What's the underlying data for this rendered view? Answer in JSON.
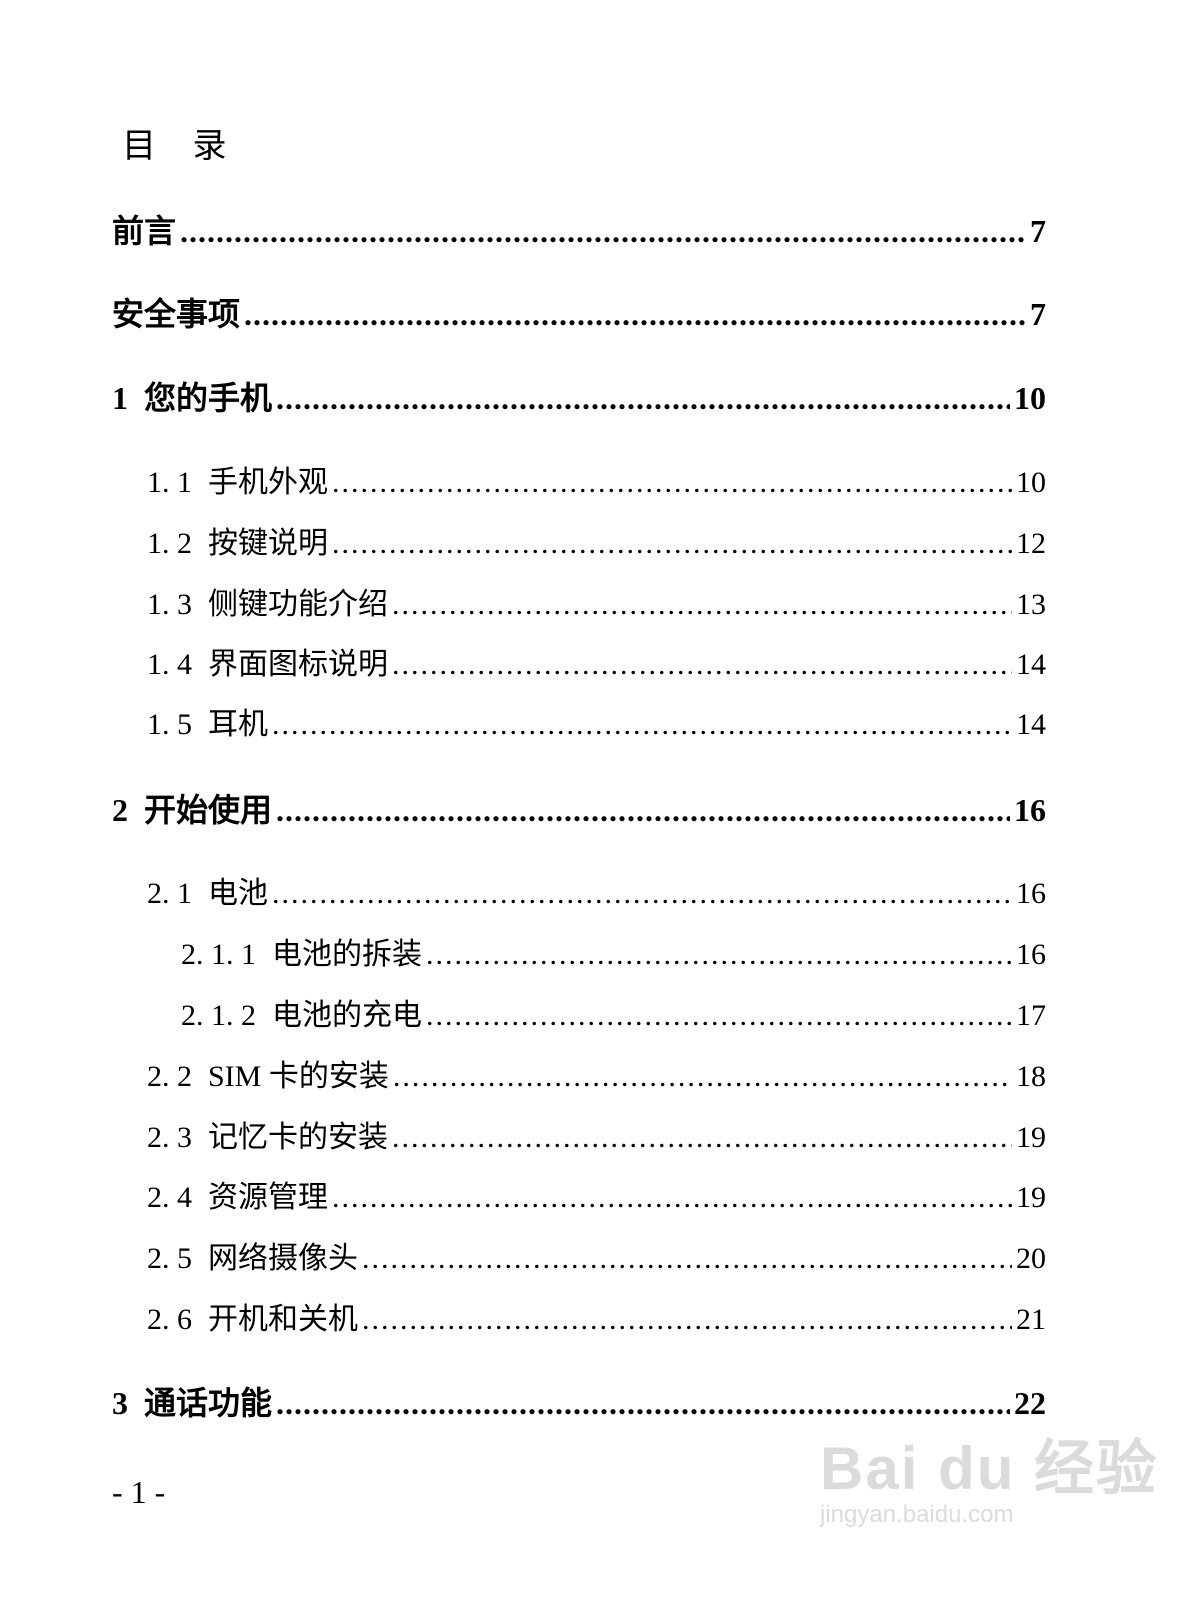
{
  "title": "目 录",
  "entries": [
    {
      "num": "",
      "label": "前言",
      "page": "7"
    },
    {
      "num": "",
      "label": "安全事项",
      "page": "7"
    },
    {
      "num": "1",
      "label": "您的手机",
      "page": "10"
    },
    {
      "num": "1. 1",
      "label": "手机外观",
      "page": "10"
    },
    {
      "num": "1. 2",
      "label": "按键说明",
      "page": "12"
    },
    {
      "num": "1. 3",
      "label": "侧键功能介绍",
      "page": "13"
    },
    {
      "num": "1. 4",
      "label": "界面图标说明",
      "page": "14"
    },
    {
      "num": "1. 5",
      "label": "耳机",
      "page": "14"
    },
    {
      "num": "2",
      "label": "开始使用",
      "page": "16"
    },
    {
      "num": "2. 1",
      "label": "电池",
      "page": "16"
    },
    {
      "num": "2. 1. 1",
      "label": "电池的拆装",
      "page": "16"
    },
    {
      "num": "2. 1. 2",
      "label": "电池的充电",
      "page": "17"
    },
    {
      "num": "2. 2",
      "label": "SIM 卡的安装",
      "page": "18"
    },
    {
      "num": "2. 3",
      "label": "记忆卡的安装",
      "page": "19"
    },
    {
      "num": "2. 4",
      "label": "资源管理",
      "page": "19"
    },
    {
      "num": "2. 5",
      "label": "网络摄像头",
      "page": "20"
    },
    {
      "num": "2. 6",
      "label": "开机和关机",
      "page": "21"
    },
    {
      "num": "3",
      "label": "通话功能",
      "page": "22"
    }
  ],
  "footer": "- 1 -",
  "watermark": {
    "brand": "Baidu经验",
    "url": "jingyan.baidu.com"
  }
}
